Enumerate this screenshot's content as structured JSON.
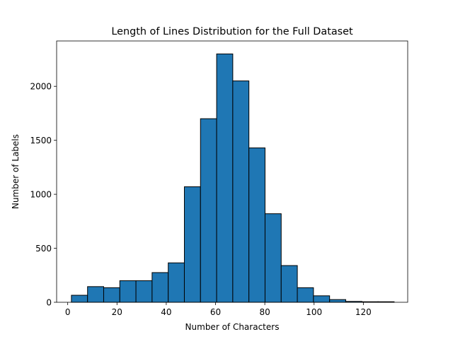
{
  "chart_data": {
    "type": "bar",
    "title": "Length of Lines Distribution for the Full Dataset",
    "xlabel": "Number of Characters",
    "ylabel": "Number of Labels",
    "bin_start": 1.5,
    "bin_width": 6.55,
    "values": [
      65,
      145,
      135,
      200,
      200,
      275,
      365,
      1070,
      1700,
      2300,
      2050,
      1430,
      820,
      340,
      135,
      60,
      25,
      8,
      5,
      5
    ],
    "xlim": [
      -4.5,
      138
    ],
    "ylim": [
      0,
      2420
    ],
    "xticks": [
      0,
      20,
      40,
      60,
      80,
      100,
      120
    ],
    "yticks": [
      0,
      500,
      1000,
      1500,
      2000
    ],
    "bar_color": "#1f77b4",
    "edge_color": "#000000",
    "grid": false
  }
}
